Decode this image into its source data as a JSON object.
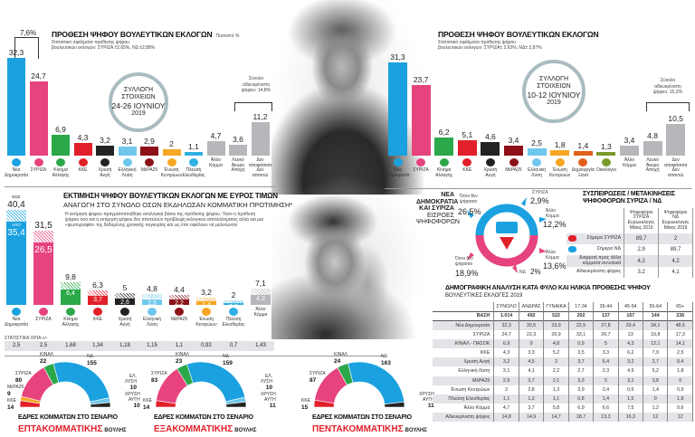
{
  "colors": {
    "nd": "#1ba1df",
    "syriza": "#e6437f",
    "kinal": "#2ba84a",
    "kke": "#e2202a",
    "xa": "#222222",
    "el": "#6fc7ec",
    "mera": "#8c1119",
    "ek": "#f6a623",
    "pe": "#2fb0e2",
    "dimiourgia": "#e0601c",
    "oikologoi": "#7a9a2a",
    "other": "#b6b7ba",
    "red_title": "#e2202a",
    "circle": "#a9bcc0",
    "table_band": "#e2e4e8"
  },
  "poll_jun24": {
    "title": "ΠΡΟΘΕΣΗ ΨΗΦΟΥ ΒΟΥΛΕΥΤΙΚΩΝ ΕΚΛΟΓΩΝ",
    "unit": "Ποσοστό %",
    "subtitle1": "Στατιστικό σφάλματα πρόθεσης ψήφου",
    "subtitle2": "βουλευτικών εκλογών: ΣΥΡΙΖΑ ±2,65%, ΝΔ ±2,88%",
    "collection": {
      "l1": "ΣΥΛΛΟΓΗ",
      "l2": "ΣΤΟΙΧΕΙΩΝ",
      "dates": "24-26 ΙΟΥΝΙΟΥ",
      "year": "2019"
    },
    "diff_label": "7,6%",
    "undecided_note": "Σύνολο\nαδιευκρίνιστη\nψήφου: 14,8%"
  },
  "poll_jun10": {
    "title": "ΠΡΟΘΕΣΗ ΨΗΦΟΥ ΒΟΥΛΕΥΤΙΚΩΝ ΕΚΛΟΓΩΝ",
    "subtitle1": "Στατιστικό σφάλματα πρόθεσης ψήφου",
    "subtitle2": "βουλευτικών εκλογών: ΣΥΡΙΖΑ± 2,63%, ΝΔ± 2,87%",
    "collection": {
      "l1": "ΣΥΛΛΟΓΗ",
      "l2": "ΣΤΟΙΧΕΙΩΝ",
      "dates": "10-12 ΙΟΥΝΙΟΥ",
      "year": "2019"
    },
    "undecided_note": "Σύνολο\nαδιευκρίνιστη\nψήφου: 15,3%"
  },
  "estimate": {
    "title": "ΕΚΤΙΜΗΣΗ ΨΗΦΟΥ ΒΟΥΛΕΥΤΙΚΩΝ ΕΚΛΟΓΩΝ ΜΕ ΕΥΡΟΣ ΤΙΜΩΝ",
    "subtitle": "ΑΝΑΓΩΓΗ ΣΤΟ ΣΥΝΟΛΟ ΟΣΩΝ ΕΚΔΗΛΩΣΑΝ ΚΟΜΜΑΤΙΚΗ ΠΡΟΤΙΜΗΣΗ*",
    "note": "Η εκτίμηση ψήφου πραγματοποιήθηκε αναλογικά βάσει της πρόθεσης ψήφου. Τόσο η πρόθεση ψήφου όσο και η εκτίμηση ψήφου δεν αποτελούν πρόβλεψη εκλογικού αποτελέσματος αλλά και μια «φωτογραφία» της δεδομένης χρονικής συγκυρίας και ως έτσι οφείλουν να μελετώνται",
    "stats_label": "ΣΤΑΤΙΣΤΙΚΑ ΟΡΙΑ +/-",
    "stats": [
      "2,5",
      "2,5",
      "1,68",
      "1,34",
      "1,18",
      "1,15",
      "1,1",
      "0,92",
      "0,7",
      "1,43"
    ]
  },
  "inflows": {
    "title1": "ΝΕΑ",
    "title2": "ΔΗΜΟΚΡΑΤΙΑ",
    "title3": "ΚΑΙ ΣΥΡΙΖΑ",
    "sub1": "ΕΙΣΡΟΕΣ",
    "sub2": "ΨΗΦΟΦΟΡΩΝ",
    "nd_nonvoters_label": "Όσοι δεν\nψήφισαν",
    "nd_nonvoters": "26,5%",
    "nd_from_syriza_label": "ΣΥΡΙΖΑ",
    "nd_from_syriza": "2,9%",
    "nd_other_label": "Άλλο\nΚόμμα",
    "nd_other": "12,2%",
    "syr_nonvoters_label": "Όσοι δεν\nψήφισαν",
    "syr_nonvoters": "18,9%",
    "syr_other_label": "Άλλο\nΚόμμα",
    "syr_other": "13,6%",
    "syr_from_nd_label": "ΝΔ",
    "syr_from_nd": "2%"
  },
  "movements": {
    "title1": "ΣΥΣΠΕΙΡΩΣΕΙΣ / ΜΕΤΑΚΙΝΗΣΕΙΣ",
    "title2": "ΨΗΦΟΦΟΡΩΝ ΣΥΡΙΖΑ / ΝΔ",
    "columns": [
      "Ψηφοφόροι\nΣΥΡΙΖΑ\nΕυρωεκλογές\nΜάιος 2019",
      "Ψηφοφόροι\nΝΔ\nΕυρωεκλογές\nΜάιος 2019"
    ],
    "rows": [
      {
        "label": "Σήμερα ΣΥΡΙΖΑ",
        "icon": "syriza-logo-icon",
        "values": [
          "89,7",
          "2"
        ]
      },
      {
        "label": "Σήμερα ΝΔ",
        "icon": "nd-logo-icon",
        "values": [
          "2,9",
          "89,7"
        ]
      },
      {
        "label": "Διαρροή προς άλλα\nκόμματα συνολικά",
        "values": [
          "4,2",
          "4,2"
        ]
      },
      {
        "label": "Αδιευκρίνιστη ψήφος",
        "values": [
          "3,2",
          "4,1"
        ]
      }
    ]
  },
  "demographics": {
    "title": "ΔΗΜΟΓΡΑΦΙΚΗ ΑΝΑΛΥΣΗ ΚΑΤΑ ΦΥΛΟ ΚΑΙ ΗΛΙΚΙΑ ΠΡΟΘΕΣΗΣ ΨΗΦΟΥ",
    "subtitle": "ΒΟΥΛΕΥΤΙΚΕΣ ΕΚΛΟΓΕΣ 2019",
    "columns": [
      "ΣΥΝΟΛΟ",
      "ΑΝΔΡΑΣ",
      "ΓΥΝΑΙΚΑ",
      "17-34",
      "35-44",
      "45-54",
      "55-64",
      "65+"
    ],
    "base": {
      "label": "ΒΑΣΗ",
      "values": [
        "1.014",
        "492",
        "522",
        "202",
        "137",
        "167",
        "144",
        "236"
      ]
    },
    "rows": [
      {
        "label": "Νέα Δημοκρατία",
        "values": [
          "32,3",
          "30,5",
          "33,9",
          "22,5",
          "27,8",
          "29,4",
          "34,1",
          "48,6"
        ]
      },
      {
        "label": "ΣΥΡΙΖΑ",
        "values": [
          "24,7",
          "22,3",
          "26,9",
          "33,1",
          "26,7",
          "23",
          "19,8",
          "17,3"
        ]
      },
      {
        "label": "ΚΙΝΑΛ - ΠΑΣΟΚ",
        "values": [
          "6,9",
          "9",
          "4,8",
          "0,9",
          "5",
          "4,3",
          "12,1",
          "14,1"
        ]
      },
      {
        "label": "ΚΚΕ",
        "values": [
          "4,3",
          "3,3",
          "5,2",
          "3,5",
          "3,3",
          "6,2",
          "7,9",
          "2,5"
        ]
      },
      {
        "label": "Χρυσή Αυγή",
        "values": [
          "3,2",
          "4,5",
          "2",
          "3,7",
          "6,4",
          "3,2",
          "2,7",
          "0,4"
        ]
      },
      {
        "label": "Ελληνική Λύση",
        "values": [
          "3,1",
          "4,1",
          "2,2",
          "2,7",
          "2,3",
          "4,9",
          "5,2",
          "1,8"
        ]
      },
      {
        "label": "ΜέΡΑ25",
        "values": [
          "2,9",
          "3,7",
          "2,1",
          "3,3",
          "5",
          "3,1",
          "3,8",
          "0"
        ]
      },
      {
        "label": "Ένωση Κεντρώων",
        "values": [
          "2",
          "2,8",
          "1,3",
          "3,9",
          "2,4",
          "0,6",
          "1,4",
          "0,9"
        ]
      },
      {
        "label": "Πλεύση Ελευθερίας",
        "values": [
          "1,1",
          "1,2",
          "1,1",
          "0,8",
          "1,4",
          "1,5",
          "0",
          "1,8"
        ]
      },
      {
        "label": "Άλλο Κόμμα",
        "values": [
          "4,7",
          "3,7",
          "5,8",
          "6,9",
          "6,6",
          "7,5",
          "1,2",
          "0,6"
        ]
      },
      {
        "label": "Αδιευκρίνιστη ψήφος",
        "values": [
          "14,8",
          "14,9",
          "14,7",
          "18,7",
          "13,3",
          "16,3",
          "12",
          "12"
        ]
      }
    ]
  },
  "chart_data": [
    {
      "type": "bar",
      "title": "ΠΡΟΘΕΣΗ ΨΗΦΟΥ ΒΟΥΛΕΥΤΙΚΩΝ ΕΚΛΟΓΩΝ",
      "ylabel": "Ποσοστό %",
      "categories": [
        "Νέα\nΔημοκρατία",
        "ΣΥΡΙΖΑ",
        "Κίνημα\nΑλλαγής",
        "ΚΚΕ",
        "Χρυσή\nΑυγή",
        "Ελληνική\nΛύση",
        "ΜέΡΑ25",
        "Ένωση\nΚεντρώων",
        "Πλεύση\nΕλευθερίας",
        "Άλλο\nΚόμμα",
        "Λευκό\nΆκυρο\nΑποχή",
        "Δεν\nαποφάσισα\nΔεν\nαπαντώ"
      ],
      "values": [
        32.3,
        24.7,
        6.9,
        4.3,
        3.2,
        3.1,
        2.9,
        2,
        1.1,
        4.7,
        3.6,
        11.2
      ],
      "labels": [
        "32,3",
        "24,7",
        "6,9",
        "4,3",
        "3,2",
        "3,1",
        "2,9",
        "2",
        "1,1",
        "4,7",
        "3,6",
        "11,2"
      ],
      "color_keys": [
        "nd",
        "syriza",
        "kinal",
        "kke",
        "xa",
        "el",
        "mera",
        "ek",
        "pe",
        "other",
        "other",
        "other"
      ],
      "icons": [
        "nd-logo-icon",
        "syriza-logo-icon",
        "kinal-logo-icon",
        "kke-logo-icon",
        "xa-logo-icon",
        "el-logo-icon",
        "mera25-logo-icon",
        "ek-logo-icon",
        "pe-logo-icon",
        "",
        "",
        ""
      ],
      "grid": false
    },
    {
      "type": "bar",
      "title": "ΠΡΟΘΕΣΗ ΨΗΦΟΥ ΒΟΥΛΕΥΤΙΚΩΝ ΕΚΛΟΓΩΝ",
      "categories": [
        "Νέα\nΔημοκρατία",
        "ΣΥΡΙΖΑ",
        "Κίνημα\nΑλλαγής",
        "ΚΚΕ",
        "Χρυσή\nΑυγή",
        "ΜέΡΑ25",
        "Ελληνική\nΛύση",
        "Ένωση\nΚεντρώων",
        "Δημιουργία\nΞανά",
        "Οικολόγοι",
        "Άλλο\nΚόμμα",
        "Λευκό\nΆκυρο\nΑποχή",
        "Δεν\nαποφάσισα\nΔεν\nαπαντώ"
      ],
      "values": [
        31.3,
        23.7,
        6.2,
        5.1,
        4.6,
        3.4,
        2.5,
        1.8,
        1.4,
        1.3,
        3.4,
        4.8,
        10.5
      ],
      "labels": [
        "31,3",
        "23,7",
        "6,2",
        "5,1",
        "4,6",
        "3,4",
        "2,5",
        "1,8",
        "1,4",
        "1,3",
        "3,4",
        "4,8",
        "10,5"
      ],
      "color_keys": [
        "nd",
        "syriza",
        "kinal",
        "kke",
        "xa",
        "mera",
        "el",
        "ek",
        "dimiourgia",
        "oikologoi",
        "other",
        "other",
        "other"
      ],
      "icons": [
        "nd-logo-icon",
        "syriza-logo-icon",
        "kinal-logo-icon",
        "kke-logo-icon",
        "xa-logo-icon",
        "mera25-logo-icon",
        "el-logo-icon",
        "ek-logo-icon",
        "dimiourgia-logo-icon",
        "oikologoi-logo-icon",
        "",
        "",
        ""
      ],
      "grid": false
    },
    {
      "type": "bar",
      "title": "ΕΚΤΙΜΗΣΗ ΨΗΦΟΥ ΒΟΥΛΕΥΤΙΚΩΝ ΕΚΛΟΓΩΝ ΜΕ ΕΥΡΟΣ ΤΙΜΩΝ",
      "categories": [
        "Νέα\nΔημοκρατία",
        "ΣΥΡΙΖΑ",
        "Κίνημα\nΑλλαγής",
        "ΚΚΕ",
        "Χρυσή\nΑυγή",
        "Ελληνική\nΛύση",
        "ΜέΡΑ25",
        "Ένωση\nΚεντρώων",
        "Πλεύση\nΕλευθερίας",
        "Άλλο\nΚόμμα"
      ],
      "series": [
        {
          "name": "ΑΠΟ",
          "values": [
            35.4,
            26.5,
            6.4,
            3.7,
            2.6,
            2.5,
            2.2,
            1.4,
            0.6,
            4.3
          ]
        },
        {
          "name": "ΕΩΣ",
          "values": [
            40.4,
            31.5,
            9.8,
            6.3,
            5,
            4.8,
            4.4,
            3.2,
            2,
            7.1
          ]
        }
      ],
      "color_keys": [
        "nd",
        "syriza",
        "kinal",
        "kke",
        "xa",
        "el",
        "mera",
        "ek",
        "pe",
        "other"
      ],
      "icons": [
        "nd-logo-icon",
        "syriza-logo-icon",
        "kinal-logo-icon",
        "kke-logo-icon",
        "xa-logo-icon",
        "el-logo-icon",
        "mera25-logo-icon",
        "ek-logo-icon",
        "pe-logo-icon",
        ""
      ],
      "grid": false
    },
    {
      "type": "pie",
      "shape": "semicircle",
      "title": "ΕΔΡΕΣ ΚΟΜΜΑΤΩΝ ΣΤΟ ΣΕΝΑΡΙΟ",
      "title_highlight": "ΕΠΤΑΚΟΜΜΑΤΙΚΗΣ",
      "title_end": "ΒΟΥΛΗΣ",
      "categories": [
        "ΚΚΕ",
        "ΜέΡΑ25",
        "ΣΥΡΙΖΑ",
        "ΚΙΝΑΛ",
        "ΝΔ",
        "ΕΛ.\nΛΥΣΗ",
        "ΧΡΥΣΗ\nΑΥΓΗ"
      ],
      "values": [
        14,
        9,
        80,
        22,
        155,
        10,
        10
      ],
      "color_keys": [
        "kke",
        "ek",
        "syriza",
        "kinal",
        "nd",
        "el",
        "xa"
      ]
    },
    {
      "type": "pie",
      "shape": "semicircle",
      "title": "ΕΔΡΕΣ ΚΟΜΜΑΤΩΝ ΣΤΟ ΣΕΝΑΡΙΟ",
      "title_highlight": "ΕΞΑΚΟΜΜΑΤΙΚΗΣ",
      "title_end": "ΒΟΥΛΗΣ",
      "categories": [
        "ΚΚΕ",
        "ΣΥΡΙΖΑ",
        "ΚΙΝΑΛ",
        "ΝΔ",
        "ΕΛ.\nΛΥΣΗ",
        "ΧΡΥΣΗ\nΑΥΓΗ"
      ],
      "values": [
        14,
        83,
        23,
        159,
        10,
        11
      ],
      "color_keys": [
        "kke",
        "syriza",
        "kinal",
        "nd",
        "el",
        "xa"
      ]
    },
    {
      "type": "pie",
      "shape": "semicircle",
      "title": "ΕΔΡΕΣ ΚΟΜΜΑΤΩΝ ΣΤΟ ΣΕΝΑΡΙΟ",
      "title_highlight": "ΠΕΝΤΑΚΟΜΜΑΤΙΚΗΣ",
      "title_end": "ΒΟΥΛΗΣ",
      "categories": [
        "ΚΚΕ",
        "ΣΥΡΙΖΑ",
        "ΚΙΝΑΛ",
        "ΝΔ",
        "ΧΡΥΣΗ\nΑΥΓΗ"
      ],
      "values": [
        15,
        87,
        24,
        163,
        11
      ],
      "color_keys": [
        "kke",
        "syriza",
        "kinal",
        "nd",
        "xa"
      ]
    }
  ]
}
